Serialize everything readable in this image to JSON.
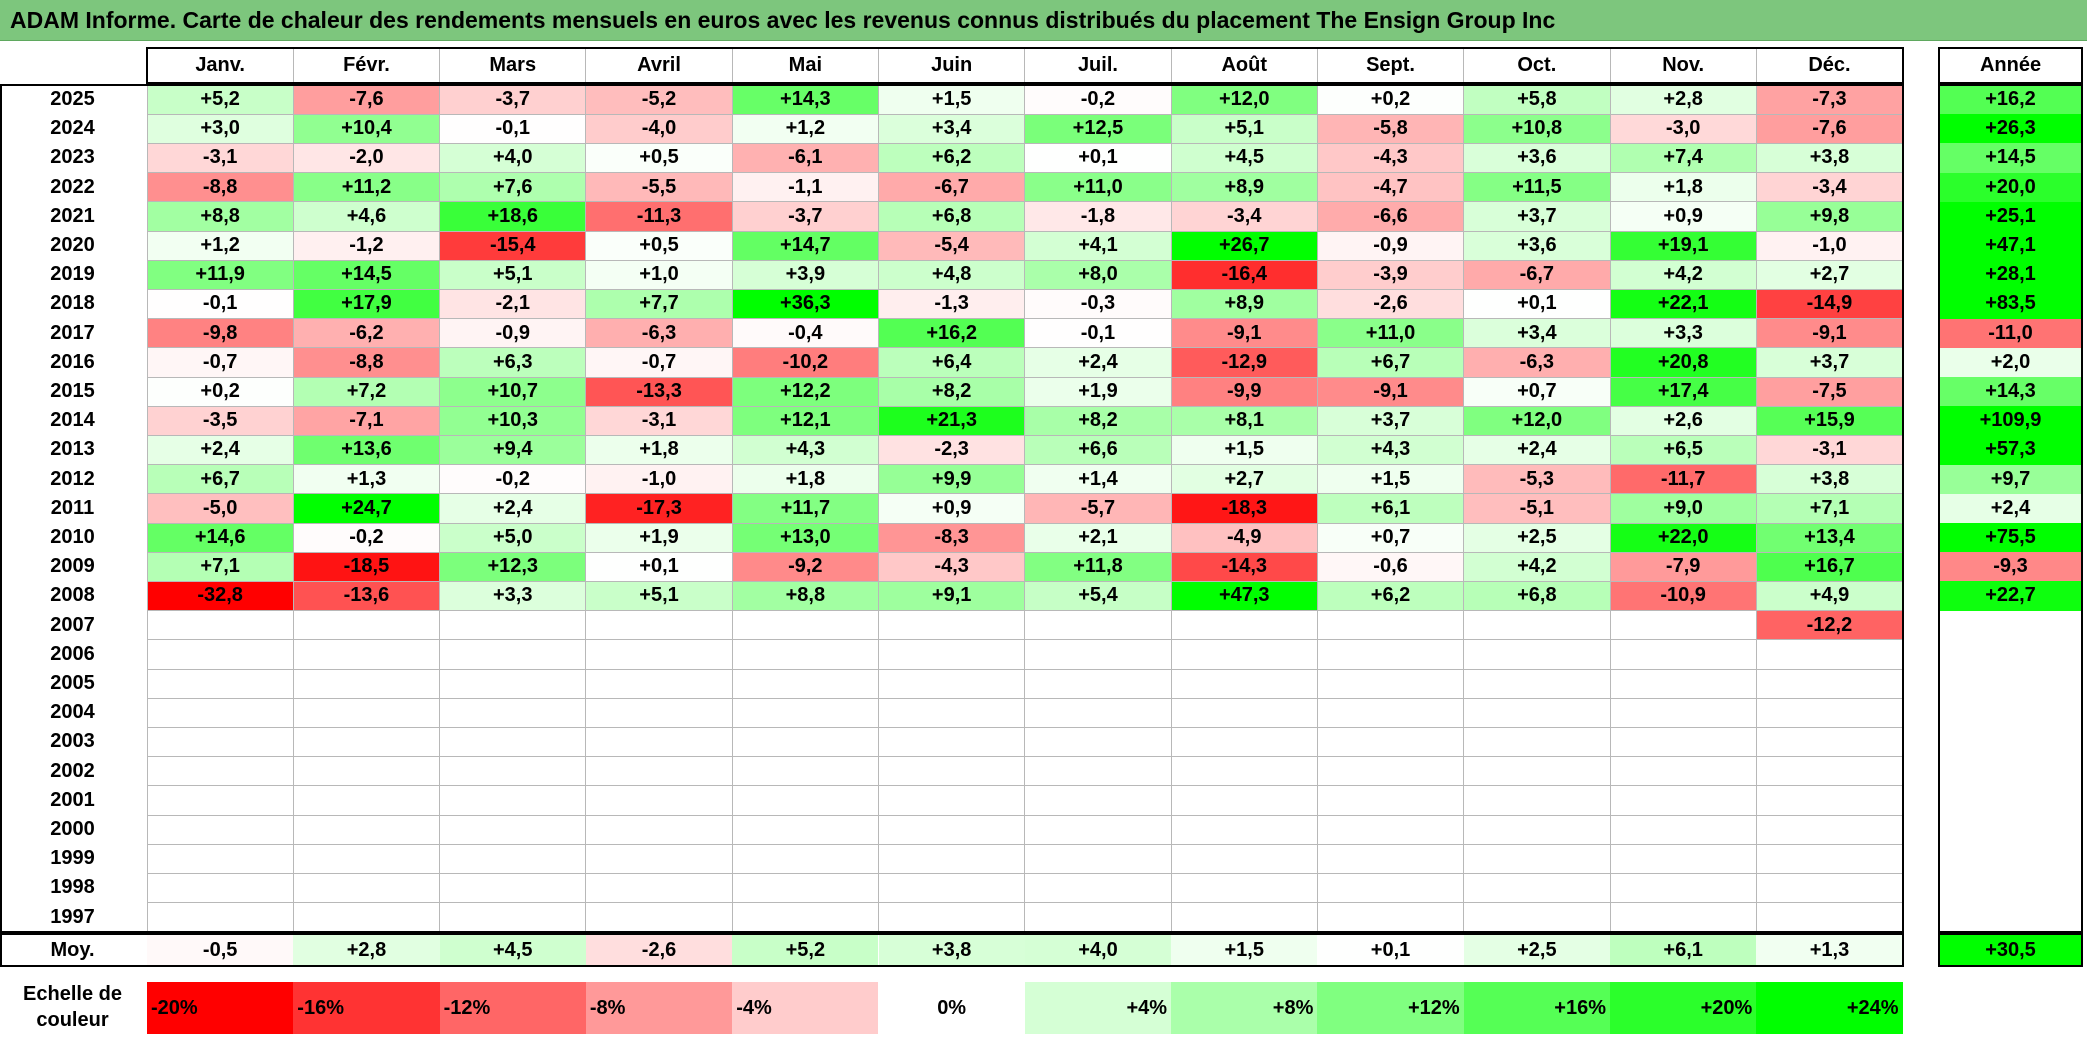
{
  "title": "ADAM Informe. Carte de chaleur des rendements mensuels en euros avec les revenus connus distribués du placement The Ensign Group Inc",
  "chart_data": {
    "type": "heatmap",
    "title": "ADAM Informe. Carte de chaleur des rendements mensuels en euros avec les revenus connus distribués du placement The Ensign Group Inc",
    "columns": [
      "Janv.",
      "Févr.",
      "Mars",
      "Avril",
      "Mai",
      "Juin",
      "Juil.",
      "Août",
      "Sept.",
      "Oct.",
      "Nov.",
      "Déc."
    ],
    "year_header": "Année",
    "rows": [
      {
        "year": "2025",
        "months": [
          "+5,2",
          "-7,6",
          "-3,7",
          "-5,2",
          "+14,3",
          "+1,5",
          "-0,2",
          "+12,0",
          "+0,2",
          "+5,8",
          "+2,8",
          "-7,3"
        ],
        "year_value": "+16,2"
      },
      {
        "year": "2024",
        "months": [
          "+3,0",
          "+10,4",
          "-0,1",
          "-4,0",
          "+1,2",
          "+3,4",
          "+12,5",
          "+5,1",
          "-5,8",
          "+10,8",
          "-3,0",
          "-7,6"
        ],
        "year_value": "+26,3"
      },
      {
        "year": "2023",
        "months": [
          "-3,1",
          "-2,0",
          "+4,0",
          "+0,5",
          "-6,1",
          "+6,2",
          "+0,1",
          "+4,5",
          "-4,3",
          "+3,6",
          "+7,4",
          "+3,8"
        ],
        "year_value": "+14,5"
      },
      {
        "year": "2022",
        "months": [
          "-8,8",
          "+11,2",
          "+7,6",
          "-5,5",
          "-1,1",
          "-6,7",
          "+11,0",
          "+8,9",
          "-4,7",
          "+11,5",
          "+1,8",
          "-3,4"
        ],
        "year_value": "+20,0"
      },
      {
        "year": "2021",
        "months": [
          "+8,8",
          "+4,6",
          "+18,6",
          "-11,3",
          "-3,7",
          "+6,8",
          "-1,8",
          "-3,4",
          "-6,6",
          "+3,7",
          "+0,9",
          "+9,8"
        ],
        "year_value": "+25,1"
      },
      {
        "year": "2020",
        "months": [
          "+1,2",
          "-1,2",
          "-15,4",
          "+0,5",
          "+14,7",
          "-5,4",
          "+4,1",
          "+26,7",
          "-0,9",
          "+3,6",
          "+19,1",
          "-1,0"
        ],
        "year_value": "+47,1"
      },
      {
        "year": "2019",
        "months": [
          "+11,9",
          "+14,5",
          "+5,1",
          "+1,0",
          "+3,9",
          "+4,8",
          "+8,0",
          "-16,4",
          "-3,9",
          "-6,7",
          "+4,2",
          "+2,7"
        ],
        "year_value": "+28,1"
      },
      {
        "year": "2018",
        "months": [
          "-0,1",
          "+17,9",
          "-2,1",
          "+7,7",
          "+36,3",
          "-1,3",
          "-0,3",
          "+8,9",
          "-2,6",
          "+0,1",
          "+22,1",
          "-14,9"
        ],
        "year_value": "+83,5"
      },
      {
        "year": "2017",
        "months": [
          "-9,8",
          "-6,2",
          "-0,9",
          "-6,3",
          "-0,4",
          "+16,2",
          "-0,1",
          "-9,1",
          "+11,0",
          "+3,4",
          "+3,3",
          "-9,1"
        ],
        "year_value": "-11,0"
      },
      {
        "year": "2016",
        "months": [
          "-0,7",
          "-8,8",
          "+6,3",
          "-0,7",
          "-10,2",
          "+6,4",
          "+2,4",
          "-12,9",
          "+6,7",
          "-6,3",
          "+20,8",
          "+3,7"
        ],
        "year_value": "+2,0"
      },
      {
        "year": "2015",
        "months": [
          "+0,2",
          "+7,2",
          "+10,7",
          "-13,3",
          "+12,2",
          "+8,2",
          "+1,9",
          "-9,9",
          "-9,1",
          "+0,7",
          "+17,4",
          "-7,5"
        ],
        "year_value": "+14,3"
      },
      {
        "year": "2014",
        "months": [
          "-3,5",
          "-7,1",
          "+10,3",
          "-3,1",
          "+12,1",
          "+21,3",
          "+8,2",
          "+8,1",
          "+3,7",
          "+12,0",
          "+2,6",
          "+15,9"
        ],
        "year_value": "+109,9"
      },
      {
        "year": "2013",
        "months": [
          "+2,4",
          "+13,6",
          "+9,4",
          "+1,8",
          "+4,3",
          "-2,3",
          "+6,6",
          "+1,5",
          "+4,3",
          "+2,4",
          "+6,5",
          "-3,1"
        ],
        "year_value": "+57,3"
      },
      {
        "year": "2012",
        "months": [
          "+6,7",
          "+1,3",
          "-0,2",
          "-1,0",
          "+1,8",
          "+9,9",
          "+1,4",
          "+2,7",
          "+1,5",
          "-5,3",
          "-11,7",
          "+3,8"
        ],
        "year_value": "+9,7"
      },
      {
        "year": "2011",
        "months": [
          "-5,0",
          "+24,7",
          "+2,4",
          "-17,3",
          "+11,7",
          "+0,9",
          "-5,7",
          "-18,3",
          "+6,1",
          "-5,1",
          "+9,0",
          "+7,1"
        ],
        "year_value": "+2,4"
      },
      {
        "year": "2010",
        "months": [
          "+14,6",
          "-0,2",
          "+5,0",
          "+1,9",
          "+13,0",
          "-8,3",
          "+2,1",
          "-4,9",
          "+0,7",
          "+2,5",
          "+22,0",
          "+13,4"
        ],
        "year_value": "+75,5"
      },
      {
        "year": "2009",
        "months": [
          "+7,1",
          "-18,5",
          "+12,3",
          "+0,1",
          "-9,2",
          "-4,3",
          "+11,8",
          "-14,3",
          "-0,6",
          "+4,2",
          "-7,9",
          "+16,7"
        ],
        "year_value": "-9,3"
      },
      {
        "year": "2008",
        "months": [
          "-32,8",
          "-13,6",
          "+3,3",
          "+5,1",
          "+8,8",
          "+9,1",
          "+5,4",
          "+47,3",
          "+6,2",
          "+6,8",
          "-10,9",
          "+4,9"
        ],
        "year_value": "+22,7"
      },
      {
        "year": "2007",
        "months": [
          "",
          "",
          "",
          "",
          "",
          "",
          "",
          "",
          "",
          "",
          "",
          "-12,2"
        ],
        "year_value": ""
      },
      {
        "year": "2006",
        "months": [
          "",
          "",
          "",
          "",
          "",
          "",
          "",
          "",
          "",
          "",
          "",
          ""
        ],
        "year_value": ""
      },
      {
        "year": "2005",
        "months": [
          "",
          "",
          "",
          "",
          "",
          "",
          "",
          "",
          "",
          "",
          "",
          ""
        ],
        "year_value": ""
      },
      {
        "year": "2004",
        "months": [
          "",
          "",
          "",
          "",
          "",
          "",
          "",
          "",
          "",
          "",
          "",
          ""
        ],
        "year_value": ""
      },
      {
        "year": "2003",
        "months": [
          "",
          "",
          "",
          "",
          "",
          "",
          "",
          "",
          "",
          "",
          "",
          ""
        ],
        "year_value": ""
      },
      {
        "year": "2002",
        "months": [
          "",
          "",
          "",
          "",
          "",
          "",
          "",
          "",
          "",
          "",
          "",
          ""
        ],
        "year_value": ""
      },
      {
        "year": "2001",
        "months": [
          "",
          "",
          "",
          "",
          "",
          "",
          "",
          "",
          "",
          "",
          "",
          ""
        ],
        "year_value": ""
      },
      {
        "year": "2000",
        "months": [
          "",
          "",
          "",
          "",
          "",
          "",
          "",
          "",
          "",
          "",
          "",
          ""
        ],
        "year_value": ""
      },
      {
        "year": "1999",
        "months": [
          "",
          "",
          "",
          "",
          "",
          "",
          "",
          "",
          "",
          "",
          "",
          ""
        ],
        "year_value": ""
      },
      {
        "year": "1998",
        "months": [
          "",
          "",
          "",
          "",
          "",
          "",
          "",
          "",
          "",
          "",
          "",
          ""
        ],
        "year_value": ""
      },
      {
        "year": "1997",
        "months": [
          "",
          "",
          "",
          "",
          "",
          "",
          "",
          "",
          "",
          "",
          "",
          ""
        ],
        "year_value": ""
      }
    ],
    "average": {
      "label": "Moy.",
      "months": [
        "-0,5",
        "+2,8",
        "+4,5",
        "-2,6",
        "+5,2",
        "+3,8",
        "+4,0",
        "+1,5",
        "+0,1",
        "+2,5",
        "+6,1",
        "+1,3"
      ],
      "year_value": "+30,5"
    },
    "legend": {
      "label_line1": "Echelle de",
      "label_line2": "couleur",
      "stops": [
        {
          "label": "-20%",
          "value": -20
        },
        {
          "label": "-16%",
          "value": -16
        },
        {
          "label": "-12%",
          "value": -12
        },
        {
          "label": "-8%",
          "value": -8
        },
        {
          "label": "-4%",
          "value": -4
        },
        {
          "label": "0%",
          "value": 0
        },
        {
          "label": "+4%",
          "value": 4
        },
        {
          "label": "+8%",
          "value": 8
        },
        {
          "label": "+12%",
          "value": 12
        },
        {
          "label": "+16%",
          "value": 16
        },
        {
          "label": "+20%",
          "value": 20
        },
        {
          "label": "+24%",
          "value": 24
        }
      ]
    },
    "colors": {
      "negative_max": "#ff0000",
      "neutral": "#ffffff",
      "positive_max": "#00ff00",
      "title_bar": "#7dc67d"
    }
  }
}
